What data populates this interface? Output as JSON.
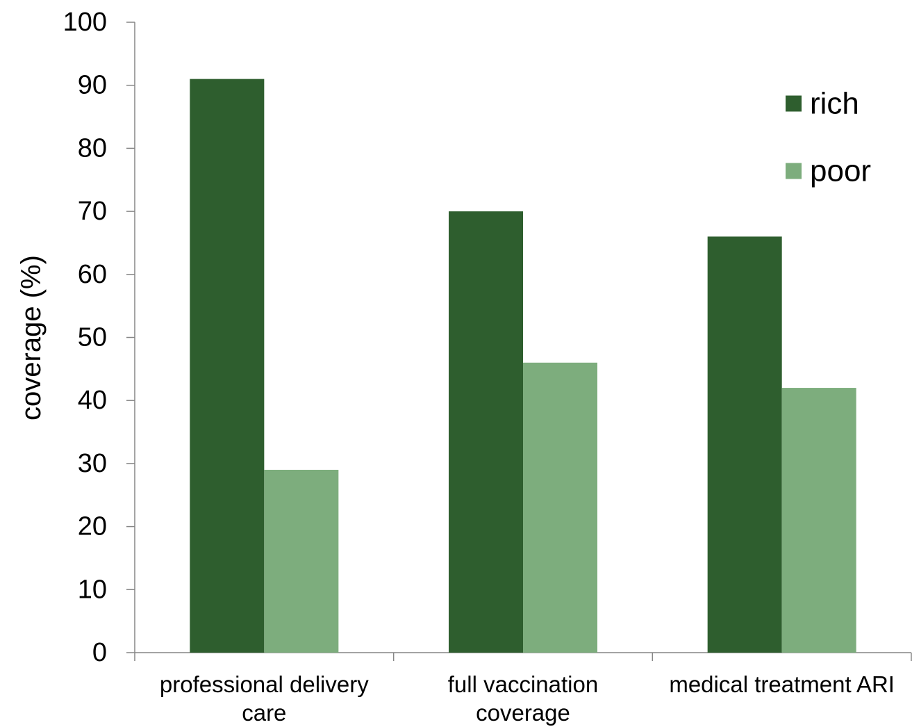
{
  "chart_data": {
    "type": "bar",
    "categories": [
      [
        "professional delivery",
        "care"
      ],
      [
        "full vaccination",
        "coverage"
      ],
      [
        "medical treatment ARI"
      ]
    ],
    "series": [
      {
        "name": "rich",
        "values": [
          91,
          70,
          66
        ],
        "color": "#2e5e2e"
      },
      {
        "name": "poor",
        "values": [
          29,
          46,
          42
        ],
        "color": "#7dad7d"
      }
    ],
    "xlabel": "",
    "ylabel": "coverage (%)",
    "ylim": [
      0,
      100
    ],
    "yticks": [
      "0",
      "10",
      "20",
      "30",
      "40",
      "50",
      "60",
      "70",
      "80",
      "90",
      "100"
    ],
    "grid": false,
    "legend_position": "top-right",
    "axis_color": "#868686"
  }
}
